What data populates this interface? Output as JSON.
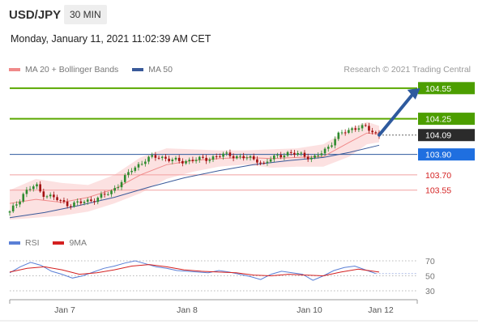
{
  "header": {
    "symbol": "USD/JPY",
    "timeframe": "30 MIN",
    "datetime": "Monday, January 11, 2021 11:02:39 AM CET"
  },
  "legend": {
    "items": [
      {
        "label": "MA 20 + Bollinger Bands",
        "color": "#f08a8a"
      },
      {
        "label": "MA 50",
        "color": "#3a5a9a"
      }
    ],
    "credit": "Research © 2021 Trading Central"
  },
  "rsi_legend": {
    "items": [
      {
        "label": "RSI",
        "color": "#5a7fd6"
      },
      {
        "label": "9MA",
        "color": "#d42020"
      }
    ]
  },
  "chart_data": [
    {
      "type": "candlestick",
      "price_range": [
        103.27,
        104.62
      ],
      "x_ticks": [
        "Jan 7",
        "Jan 8",
        "Jan 10",
        "Jan 12"
      ],
      "current_price": "104.09",
      "levels": [
        {
          "label": "104.55",
          "value": 104.55,
          "kind": "resistance"
        },
        {
          "label": "104.25",
          "value": 104.25,
          "kind": "resistance"
        },
        {
          "label": "103.90",
          "value": 103.9,
          "kind": "pivot"
        },
        {
          "label": "103.70",
          "value": 103.7,
          "kind": "support"
        },
        {
          "label": "103.55",
          "value": 103.55,
          "kind": "support"
        }
      ],
      "close_path": [
        [
          0,
          103.33
        ],
        [
          4,
          103.42
        ],
        [
          8,
          103.52
        ],
        [
          12,
          103.57
        ],
        [
          15,
          103.6
        ],
        [
          18,
          103.52
        ],
        [
          22,
          103.5
        ],
        [
          26,
          103.47
        ],
        [
          30,
          103.43
        ],
        [
          34,
          103.41
        ],
        [
          38,
          103.42
        ],
        [
          42,
          103.43
        ],
        [
          46,
          103.45
        ],
        [
          50,
          103.47
        ],
        [
          54,
          103.5
        ],
        [
          58,
          103.53
        ],
        [
          62,
          103.6
        ],
        [
          66,
          103.67
        ],
        [
          70,
          103.75
        ],
        [
          74,
          103.8
        ],
        [
          78,
          103.85
        ],
        [
          82,
          103.87
        ],
        [
          86,
          103.88
        ],
        [
          90,
          103.86
        ],
        [
          94,
          103.84
        ],
        [
          98,
          103.83
        ],
        [
          102,
          103.84
        ],
        [
          106,
          103.85
        ],
        [
          110,
          103.85
        ],
        [
          114,
          103.86
        ],
        [
          118,
          103.88
        ],
        [
          122,
          103.89
        ],
        [
          126,
          103.9
        ],
        [
          130,
          103.88
        ],
        [
          134,
          103.87
        ],
        [
          138,
          103.86
        ],
        [
          142,
          103.85
        ],
        [
          146,
          103.8
        ],
        [
          150,
          103.86
        ],
        [
          154,
          103.89
        ],
        [
          158,
          103.91
        ],
        [
          162,
          103.9
        ],
        [
          166,
          103.91
        ],
        [
          170,
          103.89
        ],
        [
          174,
          103.85
        ],
        [
          176,
          103.88
        ],
        [
          180,
          103.93
        ],
        [
          184,
          104.0
        ],
        [
          188,
          104.08
        ],
        [
          192,
          104.12
        ],
        [
          196,
          104.15
        ],
        [
          200,
          104.17
        ],
        [
          204,
          104.16
        ],
        [
          208,
          104.13
        ],
        [
          212,
          104.09
        ]
      ],
      "ma20": [
        [
          0,
          103.42
        ],
        [
          15,
          103.46
        ],
        [
          30,
          103.43
        ],
        [
          45,
          103.48
        ],
        [
          60,
          103.56
        ],
        [
          75,
          103.7
        ],
        [
          90,
          103.8
        ],
        [
          105,
          103.84
        ],
        [
          120,
          103.86
        ],
        [
          135,
          103.87
        ],
        [
          150,
          103.86
        ],
        [
          165,
          103.87
        ],
        [
          180,
          103.88
        ],
        [
          195,
          104.02
        ],
        [
          205,
          104.11
        ],
        [
          212,
          104.1
        ]
      ],
      "ma50": [
        [
          0,
          103.28
        ],
        [
          20,
          103.33
        ],
        [
          40,
          103.4
        ],
        [
          60,
          103.48
        ],
        [
          80,
          103.58
        ],
        [
          100,
          103.67
        ],
        [
          120,
          103.74
        ],
        [
          140,
          103.8
        ],
        [
          160,
          103.84
        ],
        [
          180,
          103.87
        ],
        [
          195,
          103.92
        ],
        [
          212,
          103.99
        ]
      ],
      "bb_upper": [
        [
          0,
          103.55
        ],
        [
          15,
          103.66
        ],
        [
          30,
          103.62
        ],
        [
          45,
          103.6
        ],
        [
          60,
          103.7
        ],
        [
          75,
          103.87
        ],
        [
          90,
          103.96
        ],
        [
          105,
          103.95
        ],
        [
          120,
          103.94
        ],
        [
          135,
          103.94
        ],
        [
          150,
          103.95
        ],
        [
          165,
          103.96
        ],
        [
          180,
          104.0
        ],
        [
          195,
          104.15
        ],
        [
          205,
          104.22
        ],
        [
          212,
          104.18
        ]
      ],
      "bb_lower": [
        [
          0,
          103.26
        ],
        [
          15,
          103.28
        ],
        [
          30,
          103.3
        ],
        [
          45,
          103.34
        ],
        [
          60,
          103.42
        ],
        [
          75,
          103.52
        ],
        [
          90,
          103.66
        ],
        [
          105,
          103.73
        ],
        [
          120,
          103.78
        ],
        [
          135,
          103.8
        ],
        [
          150,
          103.77
        ],
        [
          165,
          103.78
        ],
        [
          180,
          103.78
        ],
        [
          195,
          103.88
        ],
        [
          205,
          104.0
        ],
        [
          212,
          104.02
        ]
      ],
      "forecast_arrow": {
        "from": [
          104.09,
          212
        ],
        "to": [
          104.55,
          230
        ]
      }
    },
    {
      "type": "line",
      "name": "RSI",
      "y_ticks": [
        "70",
        "50",
        "30"
      ],
      "ylim": [
        20,
        80
      ],
      "rsi": [
        [
          0,
          54
        ],
        [
          6,
          62
        ],
        [
          12,
          68
        ],
        [
          18,
          64
        ],
        [
          24,
          56
        ],
        [
          30,
          52
        ],
        [
          36,
          47
        ],
        [
          42,
          50
        ],
        [
          48,
          55
        ],
        [
          54,
          60
        ],
        [
          60,
          63
        ],
        [
          66,
          67
        ],
        [
          72,
          70
        ],
        [
          78,
          66
        ],
        [
          84,
          62
        ],
        [
          90,
          60
        ],
        [
          96,
          57
        ],
        [
          102,
          56
        ],
        [
          108,
          55
        ],
        [
          114,
          54
        ],
        [
          120,
          57
        ],
        [
          126,
          55
        ],
        [
          132,
          52
        ],
        [
          138,
          49
        ],
        [
          144,
          45
        ],
        [
          150,
          52
        ],
        [
          156,
          56
        ],
        [
          162,
          54
        ],
        [
          168,
          52
        ],
        [
          174,
          44
        ],
        [
          180,
          50
        ],
        [
          186,
          57
        ],
        [
          192,
          61
        ],
        [
          198,
          63
        ],
        [
          204,
          58
        ],
        [
          210,
          53
        ]
      ],
      "ma9": [
        [
          0,
          55
        ],
        [
          10,
          60
        ],
        [
          20,
          62
        ],
        [
          30,
          58
        ],
        [
          40,
          52
        ],
        [
          50,
          54
        ],
        [
          60,
          58
        ],
        [
          70,
          63
        ],
        [
          80,
          65
        ],
        [
          90,
          62
        ],
        [
          100,
          58
        ],
        [
          110,
          56
        ],
        [
          120,
          55
        ],
        [
          130,
          54
        ],
        [
          140,
          51
        ],
        [
          150,
          50
        ],
        [
          160,
          52
        ],
        [
          170,
          51
        ],
        [
          180,
          50
        ],
        [
          190,
          55
        ],
        [
          200,
          59
        ],
        [
          212,
          55
        ]
      ]
    }
  ]
}
